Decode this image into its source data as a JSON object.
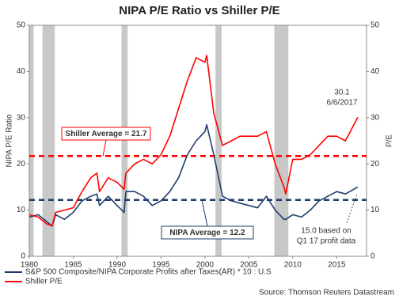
{
  "chart_data": {
    "type": "line",
    "title": "NIPA P/E Ratio vs Shiller P/E",
    "ylabel": "NIPA P/E Ratio",
    "y2label": "P/E",
    "x": [
      1980,
      1981,
      1982,
      1982.6,
      1983,
      1984,
      1985,
      1986,
      1987,
      1987.7,
      1988,
      1989,
      1990,
      1990.8,
      1991,
      1992,
      1993,
      1994,
      1995,
      1996,
      1997,
      1998,
      1999,
      2000,
      2000.2,
      2001,
      2002,
      2003,
      2004,
      2005,
      2006,
      2007,
      2008,
      2009,
      2009.2,
      2010,
      2011,
      2012,
      2013,
      2014,
      2015,
      2016,
      2017.4
    ],
    "series": [
      {
        "name": "S&P 500 Composite/NIPA Corporate Profits after Taxes(AR) * 10 : U.S",
        "color": "#1f3d6b",
        "values": [
          8.5,
          9,
          7.5,
          6.5,
          9,
          8,
          9.5,
          12,
          13,
          13.5,
          11,
          13,
          11,
          9.5,
          14,
          14,
          13,
          11,
          12,
          14,
          17,
          22,
          25,
          27,
          28.5,
          22,
          13,
          12,
          11.5,
          11,
          10.5,
          13,
          10,
          8,
          8,
          9,
          8.5,
          10,
          12,
          13,
          14,
          13.5,
          15.0
        ]
      },
      {
        "name": "Shiller P/E",
        "color": "#ff0000",
        "axis": "y2",
        "values": [
          9,
          8.5,
          7,
          6.6,
          9.5,
          10,
          10.5,
          14,
          17,
          18,
          14,
          17,
          16,
          14.5,
          18,
          20,
          21,
          20,
          22,
          26,
          32,
          38,
          43,
          42,
          43.5,
          31,
          24,
          25,
          26,
          26,
          26,
          27,
          20,
          15,
          13.5,
          21,
          21,
          22,
          24,
          26,
          26,
          25,
          30.1
        ]
      }
    ],
    "xlim": [
      1980,
      2018.4
    ],
    "xticks": [
      1980,
      1985,
      1990,
      1995,
      2000,
      2005,
      2010,
      2015
    ],
    "ylim": [
      0,
      50
    ],
    "yticks": [
      0,
      10,
      20,
      30,
      40,
      50
    ],
    "y2lim": [
      0,
      50
    ],
    "y2ticks": [
      0,
      10,
      20,
      30,
      40,
      50
    ],
    "recessions": [
      [
        1980,
        1980.5
      ],
      [
        1981.5,
        1982.9
      ],
      [
        1990.5,
        1991.2
      ],
      [
        2001.2,
        2001.9
      ],
      [
        2007.9,
        2009.5
      ]
    ],
    "reference_lines": [
      {
        "value": 21.7,
        "color": "#ff0000",
        "label": "Shiller Average = 21.7"
      },
      {
        "value": 12.2,
        "color": "#1f3d6b",
        "label": "NIPA Average = 12.2"
      }
    ],
    "annotations": [
      {
        "lines": [
          "30.1",
          "6/6/2017"
        ],
        "color": "#ff0000"
      },
      {
        "lines": [
          "15.0 based on",
          "Q1 17 profit data"
        ],
        "color": "#1f3d6b"
      }
    ],
    "source": "Source: Thomson Reuters Datastream"
  }
}
